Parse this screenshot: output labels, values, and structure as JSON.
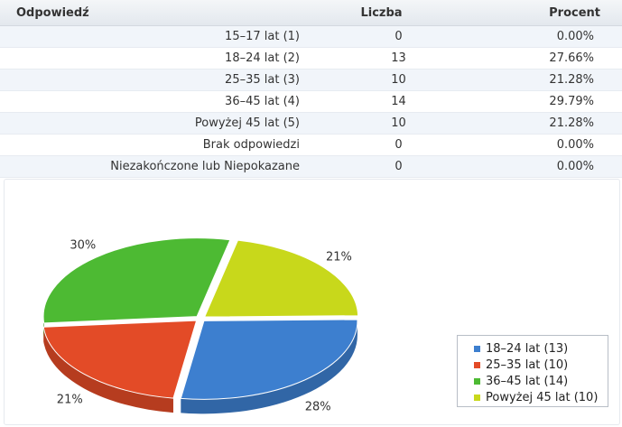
{
  "table": {
    "headers": {
      "answer": "Odpowiedź",
      "count": "Liczba",
      "percent": "Procent"
    },
    "rows": [
      {
        "label": "15–17 lat (1)",
        "count": "0",
        "percent": "0.00%"
      },
      {
        "label": "18–24 lat (2)",
        "count": "13",
        "percent": "27.66%"
      },
      {
        "label": "25–35 lat (3)",
        "count": "10",
        "percent": "21.28%"
      },
      {
        "label": "36–45 lat (4)",
        "count": "14",
        "percent": "29.79%"
      },
      {
        "label": "Powyżej 45 lat (5)",
        "count": "10",
        "percent": "21.28%"
      },
      {
        "label": "Brak odpowiedzi",
        "count": "0",
        "percent": "0.00%"
      },
      {
        "label": "Niezakończone lub Niepokazane",
        "count": "0",
        "percent": "0.00%"
      }
    ]
  },
  "chart_data": {
    "type": "pie",
    "title": "",
    "categories": [
      "18–24 lat",
      "25–35 lat",
      "36–45 lat",
      "Powyżej 45 lat"
    ],
    "values": [
      13,
      10,
      14,
      10
    ],
    "slice_labels": [
      "28%",
      "21%",
      "30%",
      "21%"
    ],
    "colors": [
      "#3d7fcf",
      "#e34b27",
      "#4dba33",
      "#c8d81b"
    ],
    "legend": {
      "position": "bottom-right",
      "entries": [
        "18–24 lat (13)",
        "25–35 lat (10)",
        "36–45 lat (14)",
        "Powyżej 45 lat (10)"
      ]
    }
  }
}
